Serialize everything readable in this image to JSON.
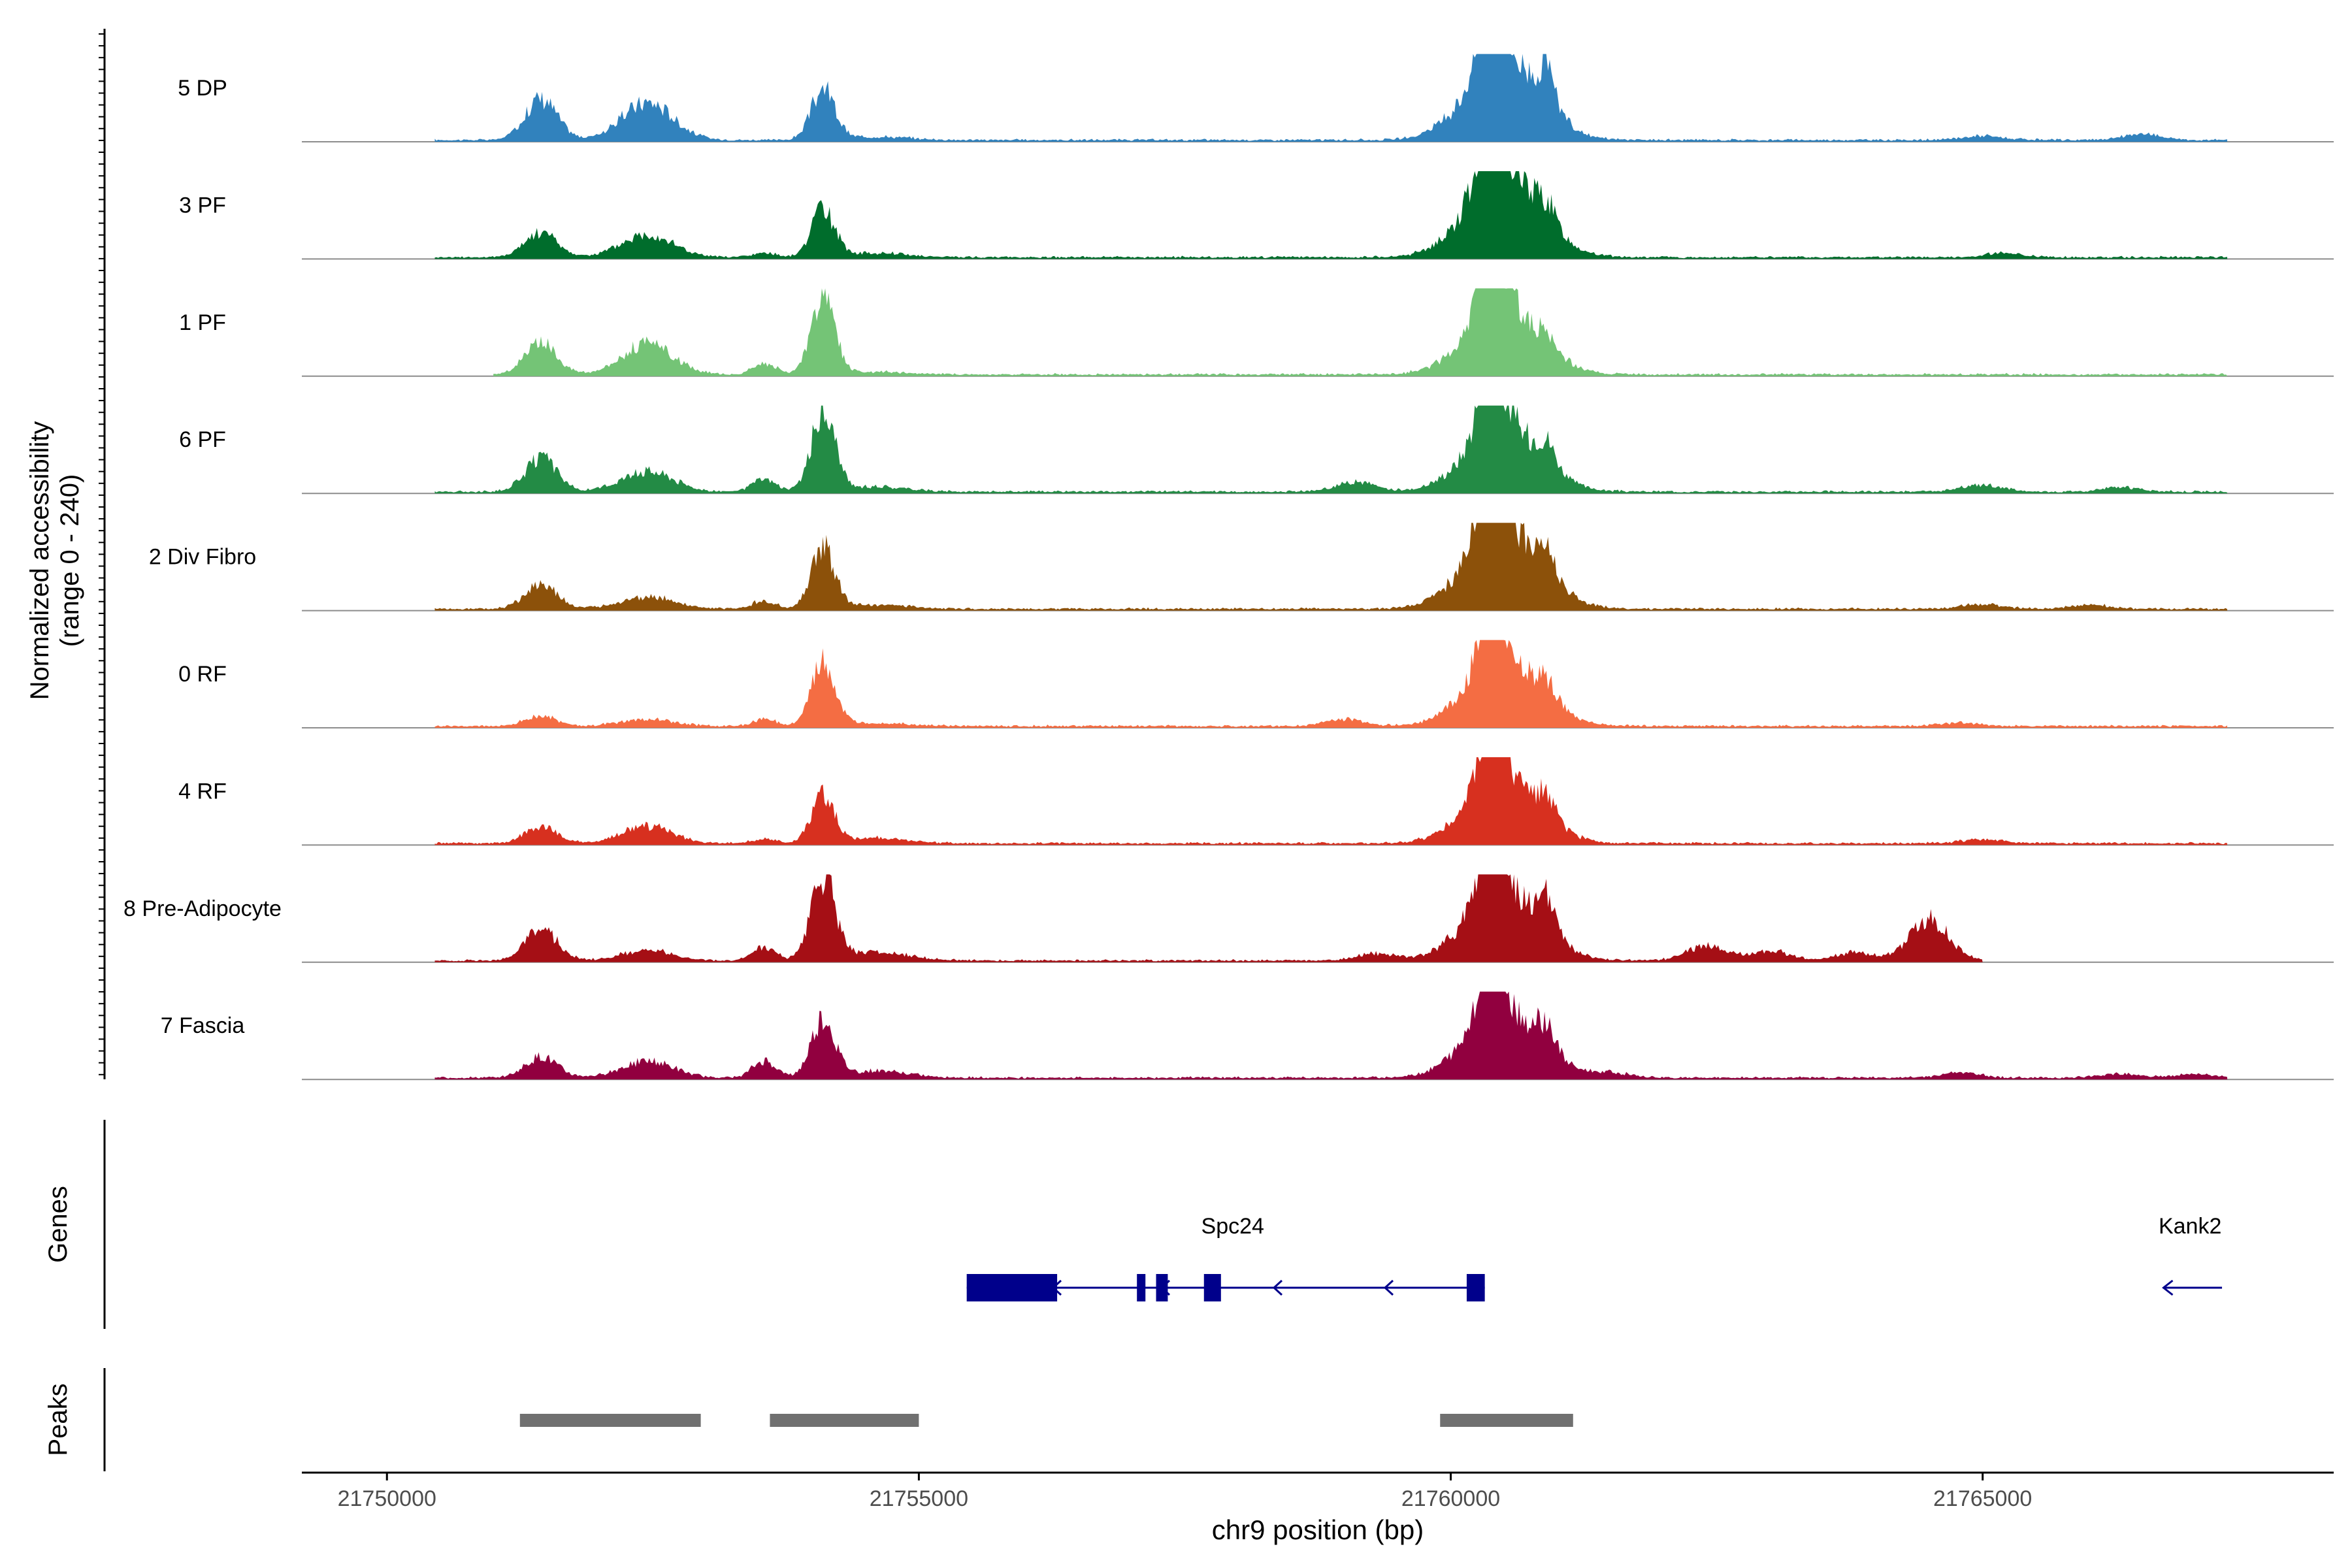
{
  "chart_data": {
    "type": "area",
    "title": "",
    "chromosome": "chr9",
    "xlabel": "chr9 position (bp)",
    "ylabel_line1": "Normalized accessibility",
    "ylabel_line2": "(range 0 - 240)",
    "y_range": [
      0,
      240
    ],
    "xlim": [
      21749200,
      21768300
    ],
    "x_ticks": [
      21750000,
      21755000,
      21760000,
      21765000
    ],
    "x_tick_labels": [
      "21750000",
      "21755000",
      "21760000",
      "21765000"
    ],
    "genes_label": "Genes",
    "peaks_label": "Peaks",
    "tracks": [
      {
        "name": "5 DP",
        "color": "#3182BD",
        "scale": 1.0,
        "amp": [
          1.0,
          0.5,
          0.45,
          0.0,
          0.6,
          0.98,
          0.35,
          0.04
        ],
        "span": [
          21750450,
          21767300
        ],
        "extra": [
          [
            21765000,
            0.05
          ],
          [
            21766500,
            0.07
          ]
        ]
      },
      {
        "name": "3 PF",
        "color": "#006D2C",
        "scale": 1.0,
        "amp": [
          1.0,
          0.3,
          0.28,
          0.05,
          0.55,
          1.0,
          0.2,
          0.05
        ],
        "span": [
          21750450,
          21767300
        ],
        "extra": [
          [
            21765200,
            0.05
          ]
        ]
      },
      {
        "name": "1 PF",
        "color": "#74C476",
        "scale": 1.0,
        "amp": [
          1.0,
          0.38,
          0.36,
          0.12,
          0.9,
          0.78,
          0.12,
          0.03
        ],
        "span": [
          21751000,
          21767300
        ],
        "extra": []
      },
      {
        "name": "6 PF",
        "color": "#238B45",
        "scale": 1.0,
        "amp": [
          1.0,
          0.4,
          0.25,
          0.15,
          0.95,
          0.78,
          0.25,
          0.06
        ],
        "span": [
          21750450,
          21767300
        ],
        "extra": [
          [
            21759100,
            0.12
          ],
          [
            21765000,
            0.08
          ],
          [
            21766300,
            0.05
          ]
        ]
      },
      {
        "name": "2 Div Fibro",
        "color": "#8C510A",
        "scale": 1.0,
        "amp": [
          1.0,
          0.3,
          0.15,
          0.1,
          0.72,
          1.0,
          0.22,
          0.05
        ],
        "span": [
          21750450,
          21767300
        ],
        "extra": [
          [
            21765000,
            0.06
          ],
          [
            21766000,
            0.05
          ]
        ]
      },
      {
        "name": "0 RF",
        "color": "#F46D43",
        "scale": 1.0,
        "amp": [
          1.0,
          0.12,
          0.08,
          0.08,
          0.76,
          0.76,
          0.22,
          0.04
        ],
        "span": [
          21750450,
          21767300
        ],
        "extra": [
          [
            21759000,
            0.08
          ],
          [
            21764800,
            0.04
          ]
        ]
      },
      {
        "name": "4 RF",
        "color": "#D7301F",
        "scale": 1.0,
        "amp": [
          1.0,
          0.2,
          0.2,
          0.05,
          0.55,
          0.72,
          0.25,
          0.06
        ],
        "span": [
          21750450,
          21767300
        ],
        "extra": [
          [
            21765000,
            0.05
          ]
        ]
      },
      {
        "name": "8 Pre-Adipocyte",
        "color": "#A50F15",
        "scale": 1.0,
        "amp": [
          1.0,
          0.38,
          0.12,
          0.15,
          1.0,
          0.82,
          0.36,
          0.1
        ],
        "span": [
          21750450,
          21765000
        ],
        "extra": [
          [
            21759300,
            0.08
          ],
          [
            21762400,
            0.18
          ],
          [
            21763000,
            0.12
          ],
          [
            21763800,
            0.1
          ],
          [
            21764500,
            0.5
          ]
        ]
      },
      {
        "name": "7 Fascia",
        "color": "#91003F",
        "scale": 1.0,
        "amp": [
          1.0,
          0.25,
          0.2,
          0.2,
          0.7,
          0.78,
          0.28,
          0.08
        ],
        "span": [
          21750450,
          21767300
        ],
        "extra": [
          [
            21761500,
            0.06
          ],
          [
            21764800,
            0.06
          ],
          [
            21766300,
            0.05
          ],
          [
            21767000,
            0.04
          ]
        ]
      }
    ],
    "genes": [
      {
        "name": "Spc24",
        "start": 21755450,
        "end": 21760320,
        "strand": "-",
        "label_pos": 21757950,
        "exons": [
          [
            21755450,
            21756300
          ],
          [
            21757050,
            21757130
          ],
          [
            21757230,
            21757340
          ],
          [
            21757680,
            21757840
          ],
          [
            21760150,
            21760320
          ]
        ]
      },
      {
        "name": "Kank2",
        "start": 21766700,
        "end": 21767250,
        "strand": "-",
        "label_pos": 21766950,
        "exons": []
      }
    ],
    "peaks": [
      {
        "start": 21751250,
        "end": 21752950
      },
      {
        "start": 21753600,
        "end": 21755000
      },
      {
        "start": 21759900,
        "end": 21761150
      }
    ]
  }
}
